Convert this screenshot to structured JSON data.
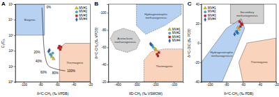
{
  "chart_data": [
    {
      "type": "scatter",
      "title": "A",
      "x_label": "δ¹³C-CH₄ (‰ VPDB)",
      "y_label": "C₁/C₂₊",
      "log": "y",
      "legend": "top-right",
      "xlim": [
        -110,
        -20
      ],
      "xticks": [
        -100,
        -80,
        -60,
        -40,
        -20
      ],
      "ylim": [
        1,
        100000
      ],
      "yticks": [
        {
          "value": 1,
          "label": "10⁰"
        },
        {
          "value": 10,
          "label": "10¹"
        },
        {
          "value": 100,
          "label": "10²"
        },
        {
          "value": 1000,
          "label": "10³"
        },
        {
          "value": 10000,
          "label": "10⁴"
        },
        {
          "value": 100000,
          "label": "10⁵"
        }
      ],
      "regions": [
        {
          "name": "Biogenic",
          "color": "#a9c9ee",
          "line_style": "solid",
          "x": [
            -110,
            -75,
            -75,
            -110
          ],
          "y": [
            1000,
            1000,
            100000,
            100000
          ]
        },
        {
          "name": "Thermogenic",
          "color": "#f8cbb0",
          "line_style": "solid",
          "x": [
            -57,
            -57,
            -50,
            -20,
            -20
          ],
          "y": [
            1,
            150,
            300,
            300,
            1
          ]
        }
      ],
      "lines": [
        {
          "color": "#000000",
          "line_style": "solid",
          "x": [
            -78,
            -77,
            -76,
            -74,
            -71,
            -66,
            -58,
            -50
          ],
          "y": [
            60000,
            5000,
            300,
            40,
            12,
            8,
            6,
            5
          ]
        }
      ],
      "annotations": [
        {
          "text": "0%",
          "x": -70,
          "y": 60000
        },
        {
          "text": "20%",
          "x": -84,
          "y": 75
        },
        {
          "text": "40%",
          "x": -82,
          "y": 20
        },
        {
          "text": "60%",
          "x": -76,
          "y": 4
        },
        {
          "text": "80%",
          "x": -62,
          "y": 3.5
        },
        {
          "text": "100%",
          "x": -43,
          "y": 5
        }
      ],
      "series": [
        {
          "name": "MV#1",
          "color": "#e3c21a",
          "marker": "triangle",
          "x": [
            -66,
            -64
          ],
          "values": [
            40,
            30
          ]
        },
        {
          "name": "MV#2",
          "color": "#35b9cf",
          "marker": "circle",
          "x": [
            -68,
            -67,
            -65
          ],
          "values": [
            60,
            50,
            70
          ]
        },
        {
          "name": "MV#3",
          "color": "#d7191c",
          "marker": "square",
          "x": [
            -58,
            -56,
            -57,
            -55
          ],
          "values": [
            150,
            120,
            200,
            170
          ]
        },
        {
          "name": "MV#4",
          "color": "#2b63c4",
          "marker": "diamond",
          "x": [
            -70,
            -69
          ],
          "values": [
            90,
            110
          ]
        }
      ]
    },
    {
      "type": "scatter",
      "title": "B",
      "x_label": "δD-CH₄ (‰ VSMOW)",
      "y_label": "δ¹³C-CH₄ (‰ VPDB)",
      "legend": "right",
      "xlim": [
        -450,
        -50
      ],
      "xticks": [
        -400,
        -300,
        -200,
        -100
      ],
      "ylim": [
        -20,
        -110
      ],
      "yticks": [
        -100,
        -80,
        -60,
        -40,
        -20
      ],
      "regions": [
        {
          "name": "Hydrogenotrophic methanogenesis",
          "color": "#a9c9ee",
          "line_style": "dashed",
          "x": [
            -300,
            -60,
            -60,
            -150,
            -250,
            -300
          ],
          "y": [
            -110,
            -110,
            -98,
            -85,
            -75,
            -85
          ]
        },
        {
          "name": "Acetoclastic methanogenesis",
          "color": "#c9c9c9",
          "line_style": "dashed",
          "x": [
            -440,
            -420,
            -370,
            -310,
            -280,
            -300,
            -350,
            -410
          ],
          "y": [
            -70,
            -78,
            -82,
            -78,
            -68,
            -58,
            -54,
            -58
          ]
        },
        {
          "name": "Thermogenic",
          "color": "#f8cbb0",
          "line_style": "dashed",
          "x": [
            -260,
            -260,
            -220,
            -150,
            -50,
            -50
          ],
          "y": [
            -20,
            -45,
            -55,
            -58,
            -58,
            -20
          ]
        }
      ],
      "series": [
        {
          "name": "MV#1",
          "color": "#e3c21a",
          "marker": "triangle",
          "x": [
            -200,
            -195
          ],
          "values": [
            -58,
            -57
          ]
        },
        {
          "name": "MV#2",
          "color": "#35b9cf",
          "marker": "circle",
          "x": [
            -215,
            -210
          ],
          "values": [
            -62,
            -60
          ]
        },
        {
          "name": "MV#3",
          "color": "#d7191c",
          "marker": "square",
          "x": [
            -190,
            -185,
            -180
          ],
          "values": [
            -52,
            -50,
            -54
          ]
        },
        {
          "name": "MV#4",
          "color": "#2b63c4",
          "marker": "diamond",
          "x": [
            -225,
            -220
          ],
          "values": [
            -64,
            -63
          ]
        }
      ]
    },
    {
      "type": "scatter",
      "title": "C",
      "x_label": "δ¹³C-CH₄ (‰ PDB)",
      "y_label": "δ¹³C-DIC (‰ PDB)",
      "legend": "top-left",
      "xlim": [
        -110,
        -20
      ],
      "xticks": [
        -100,
        -80,
        -60,
        -40,
        -20
      ],
      "ylim": [
        -40,
        40
      ],
      "yticks": [
        -40,
        -20,
        0,
        20,
        40
      ],
      "regions": [
        {
          "name": "Secondary methanogenesis",
          "color": "#c9c9c9",
          "line_style": "solid",
          "x": [
            -75,
            -35,
            -35,
            -75
          ],
          "y": [
            20,
            20,
            40,
            40
          ]
        },
        {
          "name": "Hydrogenotrophic methanogenesis",
          "color": "#a9c9ee",
          "line_style": "solid",
          "x": [
            -110,
            -110,
            -80,
            -62,
            -58,
            -70,
            -85
          ],
          "y": [
            -40,
            -20,
            15,
            25,
            15,
            -10,
            -40
          ]
        },
        {
          "name": "Thermogenic",
          "color": "#f8cbb0",
          "line_style": "solid",
          "x": [
            -60,
            -65,
            -55,
            -20,
            -20
          ],
          "y": [
            -40,
            -20,
            0,
            5,
            -40
          ]
        }
      ],
      "series": [
        {
          "name": "MV#1",
          "color": "#e3c21a",
          "marker": "triangle",
          "x": [
            -66,
            -65
          ],
          "values": [
            16,
            14
          ]
        },
        {
          "name": "MV#2",
          "color": "#35b9cf",
          "marker": "circle",
          "x": [
            -68,
            -66
          ],
          "values": [
            12,
            10
          ]
        },
        {
          "name": "MV#3",
          "color": "#d7191c",
          "marker": "square",
          "x": [
            -64,
            -62,
            -63,
            -61
          ],
          "values": [
            22,
            20,
            17,
            19
          ]
        },
        {
          "name": "MV#4",
          "color": "#2b63c4",
          "marker": "diamond",
          "x": [
            -70,
            -67
          ],
          "values": [
            9,
            11
          ]
        }
      ]
    }
  ]
}
